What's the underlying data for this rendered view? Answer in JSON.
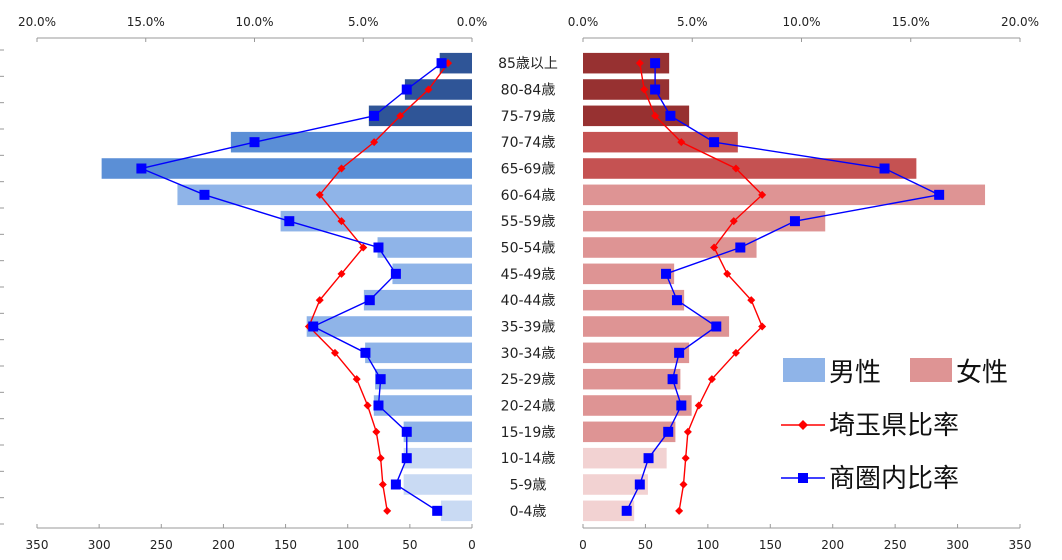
{
  "chart_data": {
    "type": "bar",
    "categories": [
      "85歳以上",
      "80-84歳",
      "75-79歳",
      "70-74歳",
      "65-69歳",
      "60-64歳",
      "55-59歳",
      "50-54歳",
      "45-49歳",
      "40-44歳",
      "35-39歳",
      "30-34歳",
      "25-29歳",
      "20-24歳",
      "15-19歳",
      "10-14歳",
      "5-9歳",
      "0-4歳"
    ],
    "left_pct_ticks": [
      "20.0%",
      "15.0%",
      "10.0%",
      "5.0%",
      "0.0%"
    ],
    "right_pct_ticks": [
      "0.0%",
      "5.0%",
      "10.0%",
      "15.0%",
      "20.0%"
    ],
    "left_count_ticks": [
      "350",
      "300",
      "250",
      "200",
      "150",
      "100",
      "50",
      "0"
    ],
    "right_count_ticks": [
      "0",
      "50",
      "100",
      "150",
      "200",
      "250",
      "300",
      "350"
    ],
    "pct_range": [
      0,
      20
    ],
    "count_range": [
      0,
      350
    ],
    "series": [
      {
        "name": "男性",
        "side": "left",
        "kind": "bar",
        "unit": "count",
        "values": [
          26,
          54,
          83,
          194,
          298,
          237,
          154,
          76,
          64,
          87,
          133,
          86,
          78,
          79,
          55,
          55,
          55,
          25
        ]
      },
      {
        "name": "女性",
        "side": "right",
        "kind": "bar",
        "unit": "count",
        "values": [
          69,
          69,
          85,
          124,
          267,
          322,
          194,
          139,
          73,
          81,
          117,
          85,
          78,
          87,
          74,
          67,
          52,
          41
        ]
      },
      {
        "name": "埼玉県比率",
        "side": "left",
        "kind": "line",
        "unit": "pct",
        "values": [
          1.1,
          2.0,
          3.3,
          4.5,
          6.0,
          7.0,
          6.0,
          5.0,
          6.0,
          7.0,
          7.5,
          6.3,
          5.3,
          4.8,
          4.4,
          4.2,
          4.1,
          3.9
        ]
      },
      {
        "name": "埼玉県比率",
        "side": "right",
        "kind": "line",
        "unit": "pct",
        "values": [
          2.6,
          2.8,
          3.3,
          4.5,
          7.0,
          8.2,
          6.9,
          6.0,
          6.6,
          7.7,
          8.2,
          7.0,
          5.9,
          5.3,
          4.8,
          4.7,
          4.6,
          4.4
        ]
      },
      {
        "name": "商圏内比率",
        "side": "left",
        "kind": "line",
        "unit": "pct",
        "values": [
          1.4,
          3.0,
          4.5,
          10.0,
          15.2,
          12.3,
          8.4,
          4.3,
          3.5,
          4.7,
          7.3,
          4.9,
          4.2,
          4.3,
          3.0,
          3.0,
          3.5,
          1.6
        ]
      },
      {
        "name": "商圏内比率",
        "side": "right",
        "kind": "line",
        "unit": "pct",
        "values": [
          3.3,
          3.3,
          4.0,
          6.0,
          13.8,
          16.3,
          9.7,
          7.2,
          3.8,
          4.3,
          6.1,
          4.4,
          4.1,
          4.5,
          3.9,
          3.0,
          2.6,
          2.0
        ]
      }
    ],
    "colors": {
      "male_dark": "#2f5597",
      "male_mid": "#5b8fd6",
      "male_light": "#8fb4e8",
      "male_pale": "#c9daf3",
      "female_dark": "#973131",
      "female_mid": "#c55252",
      "female_light": "#de9494",
      "female_pale": "#f2d2d2",
      "saitama": "#ff0000",
      "trade": "#0000ff"
    },
    "legend": {
      "male": "男性",
      "female": "女性",
      "saitama": "埼玉県比率",
      "trade": "商圏内比率",
      "placement": "right"
    }
  }
}
